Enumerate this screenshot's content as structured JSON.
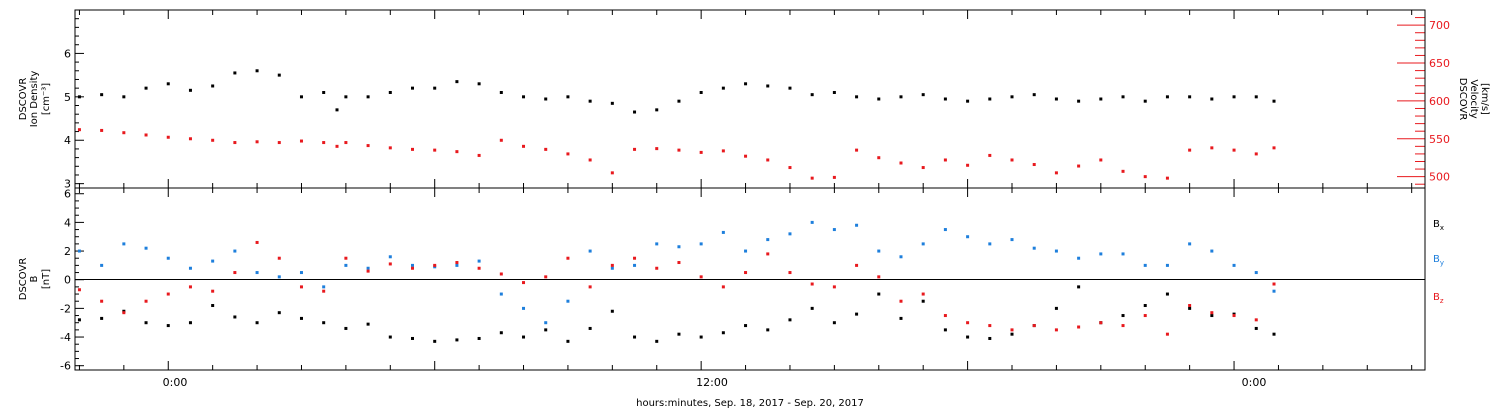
{
  "x_axis_label": "hours:minutes, Sep. 18, 2017 - Sep. 20, 2017",
  "x_tick_labels": [
    "0:00",
    "12:00",
    "0:00"
  ],
  "chart_data": [
    {
      "type": "scatter",
      "panel": "top",
      "ylabel_left": [
        "DSCOVR",
        "Ion Density",
        "[cm⁻³]"
      ],
      "ylabel_right": [
        "DSCOVR",
        "Velocity",
        "[km/s]"
      ],
      "ylim_left": [
        2.9,
        7.0
      ],
      "ylim_right": [
        485,
        720
      ],
      "left_ticks": [
        "3",
        "4",
        "5",
        "6"
      ],
      "right_ticks": [
        "500",
        "550",
        "600",
        "650",
        "700"
      ],
      "xlim_hours": [
        -2.1,
        28.3
      ],
      "grid": false,
      "series": [
        {
          "axis": "left",
          "color": "#000000",
          "x": [
            -2.0,
            -1.5,
            -1.0,
            -0.5,
            0.0,
            0.5,
            1.0,
            1.5,
            2.0,
            2.5,
            3.0,
            3.5,
            3.8,
            4.0,
            4.5,
            5.0,
            5.5,
            6.0,
            6.5,
            7.0,
            7.5,
            8.0,
            8.5,
            9.0,
            9.5,
            10.0,
            10.5,
            11.0,
            11.5,
            12.0,
            12.5,
            13.0,
            13.5,
            14.0,
            14.5,
            15.0,
            15.5,
            16.0,
            16.5,
            17.0,
            17.5,
            18.0,
            18.5,
            19.0,
            19.5,
            20.0,
            20.5,
            21.0,
            21.5,
            22.0,
            22.5,
            23.0,
            23.5,
            24.0,
            24.5,
            24.9
          ],
          "y": [
            5.0,
            5.05,
            5.0,
            5.2,
            5.3,
            5.15,
            5.25,
            5.55,
            5.6,
            5.5,
            5.0,
            5.1,
            4.7,
            5.0,
            5.0,
            5.1,
            5.2,
            5.2,
            5.35,
            5.3,
            5.1,
            5.0,
            4.95,
            5.0,
            4.9,
            4.85,
            4.65,
            4.7,
            4.9,
            5.1,
            5.2,
            5.3,
            5.25,
            5.2,
            5.05,
            5.1,
            5.0,
            4.95,
            5.0,
            5.05,
            4.95,
            4.9,
            4.95,
            5.0,
            5.05,
            4.95,
            4.9,
            4.95,
            5.0,
            4.9,
            5.0,
            5.0,
            4.95,
            5.0,
            5.0,
            4.9
          ]
        },
        {
          "axis": "right",
          "color": "#e8191e",
          "x": [
            -2.0,
            -1.5,
            -1.0,
            -0.5,
            0.0,
            0.5,
            1.0,
            1.5,
            2.0,
            2.5,
            3.0,
            3.5,
            3.8,
            4.0,
            4.5,
            5.0,
            5.5,
            6.0,
            6.5,
            7.0,
            7.5,
            8.0,
            8.5,
            9.0,
            9.5,
            10.0,
            10.5,
            11.0,
            11.5,
            12.0,
            12.5,
            13.0,
            13.5,
            14.0,
            14.5,
            15.0,
            15.5,
            16.0,
            16.5,
            17.0,
            17.5,
            18.0,
            18.5,
            19.0,
            19.5,
            20.0,
            20.5,
            21.0,
            21.5,
            22.0,
            22.5,
            23.0,
            23.5,
            24.0,
            24.5,
            24.9
          ],
          "y": [
            562,
            561,
            558,
            555,
            552,
            550,
            548,
            545,
            546,
            545,
            547,
            545,
            540,
            545,
            541,
            538,
            536,
            535,
            533,
            528,
            548,
            540,
            536,
            530,
            522,
            505,
            536,
            537,
            535,
            532,
            534,
            527,
            522,
            512,
            498,
            499,
            535,
            525,
            518,
            512,
            522,
            515,
            528,
            522,
            516,
            505,
            514,
            522,
            507,
            500,
            498,
            535,
            538,
            535,
            530,
            538
          ]
        }
      ]
    },
    {
      "type": "scatter",
      "panel": "bottom",
      "ylabel_left": [
        "DSCOVR",
        "B",
        "[nT]"
      ],
      "ylim": [
        -6.3,
        6.4
      ],
      "left_ticks": [
        "-6",
        "-4",
        "-2",
        "0",
        "2",
        "4",
        "6"
      ],
      "xlim_hours": [
        -2.1,
        28.3
      ],
      "zero_line": true,
      "legend_placement": "right",
      "legend": [
        "Bx",
        "By",
        "Bz"
      ],
      "series": [
        {
          "name": "Bx",
          "color": "#000000",
          "x": [
            -2.0,
            -1.5,
            -1.0,
            -0.5,
            0.0,
            0.5,
            1.0,
            1.5,
            2.0,
            2.5,
            3.0,
            3.5,
            4.0,
            4.5,
            5.0,
            5.5,
            6.0,
            6.5,
            7.0,
            7.5,
            8.0,
            8.5,
            9.0,
            9.5,
            10.0,
            10.5,
            11.0,
            11.5,
            12.0,
            12.5,
            13.0,
            13.5,
            14.0,
            14.5,
            15.0,
            15.5,
            16.0,
            16.5,
            17.0,
            17.5,
            18.0,
            18.5,
            19.0,
            19.5,
            20.0,
            20.5,
            21.0,
            21.5,
            22.0,
            22.5,
            23.0,
            23.5,
            24.0,
            24.5,
            24.9
          ],
          "y": [
            -2.8,
            -2.7,
            -2.2,
            -3.0,
            -3.2,
            -3.0,
            -1.8,
            -2.6,
            -3.0,
            -2.3,
            -2.7,
            -3.0,
            -3.4,
            -3.1,
            -4.0,
            -4.1,
            -4.3,
            -4.2,
            -4.1,
            -3.7,
            -4.0,
            -3.5,
            -4.3,
            -3.4,
            -2.2,
            -4.0,
            -4.3,
            -3.8,
            -4.0,
            -3.7,
            -3.2,
            -3.5,
            -2.8,
            -2.0,
            -3.0,
            -2.4,
            -1.0,
            -2.7,
            -1.5,
            -3.5,
            -4.0,
            -4.1,
            -3.8,
            -3.2,
            -2.0,
            -0.5,
            -3.0,
            -2.5,
            -1.8,
            -1.0,
            -2.0,
            -2.5,
            -2.4,
            -3.4,
            -3.8
          ]
        },
        {
          "name": "By",
          "color": "#1e7fdc",
          "x": [
            -2.0,
            -1.5,
            -1.0,
            -0.5,
            0.0,
            0.5,
            1.0,
            1.5,
            2.0,
            2.5,
            3.0,
            3.5,
            4.0,
            4.5,
            5.0,
            5.5,
            6.0,
            6.5,
            7.0,
            7.5,
            8.0,
            8.5,
            9.0,
            9.5,
            10.0,
            10.5,
            11.0,
            11.5,
            12.0,
            12.5,
            13.0,
            13.5,
            14.0,
            14.5,
            15.0,
            15.5,
            16.0,
            16.5,
            17.0,
            17.5,
            18.0,
            18.5,
            19.0,
            19.5,
            20.0,
            20.5,
            21.0,
            21.5,
            22.0,
            22.5,
            23.0,
            23.5,
            24.0,
            24.5,
            24.9
          ],
          "y": [
            2.0,
            1.0,
            2.5,
            2.2,
            1.5,
            0.8,
            1.3,
            2.0,
            0.5,
            0.2,
            0.5,
            -0.5,
            1.0,
            0.8,
            1.6,
            1.0,
            0.9,
            1.0,
            1.3,
            -1.0,
            -2.0,
            -3.0,
            -1.5,
            2.0,
            0.8,
            1.0,
            2.5,
            2.3,
            2.5,
            3.3,
            2.0,
            2.8,
            3.2,
            4.0,
            3.5,
            3.8,
            2.0,
            1.6,
            2.5,
            3.5,
            3.0,
            2.5,
            2.8,
            2.2,
            2.0,
            1.5,
            1.8,
            1.8,
            1.0,
            1.0,
            2.5,
            2.0,
            1.0,
            0.5,
            -0.8
          ]
        },
        {
          "name": "Bz",
          "color": "#e8191e",
          "x": [
            -2.0,
            -1.5,
            -1.0,
            -0.5,
            0.0,
            0.5,
            1.0,
            1.5,
            2.0,
            2.5,
            3.0,
            3.5,
            4.0,
            4.5,
            5.0,
            5.5,
            6.0,
            6.5,
            7.0,
            7.5,
            8.0,
            8.5,
            9.0,
            9.5,
            10.0,
            10.5,
            11.0,
            11.5,
            12.0,
            12.5,
            13.0,
            13.5,
            14.0,
            14.5,
            15.0,
            15.5,
            16.0,
            16.5,
            17.0,
            17.5,
            18.0,
            18.5,
            19.0,
            19.5,
            20.0,
            20.5,
            21.0,
            21.5,
            22.0,
            22.5,
            23.0,
            23.5,
            24.0,
            24.5,
            24.9
          ],
          "y": [
            -0.7,
            -1.5,
            -2.3,
            -1.5,
            -1.0,
            -0.5,
            -0.8,
            0.5,
            2.6,
            1.5,
            -0.5,
            -0.8,
            1.5,
            0.6,
            1.1,
            0.8,
            1.0,
            1.2,
            0.8,
            0.4,
            -0.2,
            0.2,
            1.5,
            -0.5,
            1.0,
            1.5,
            0.8,
            1.2,
            0.2,
            -0.5,
            0.5,
            1.8,
            0.5,
            -0.3,
            -0.5,
            1.0,
            0.2,
            -1.5,
            -1.0,
            -2.5,
            -3.0,
            -3.2,
            -3.5,
            -3.2,
            -3.5,
            -3.3,
            -3.0,
            -3.2,
            -2.5,
            -3.8,
            -1.8,
            -2.3,
            -2.5,
            -2.8,
            -0.3
          ]
        }
      ]
    }
  ]
}
